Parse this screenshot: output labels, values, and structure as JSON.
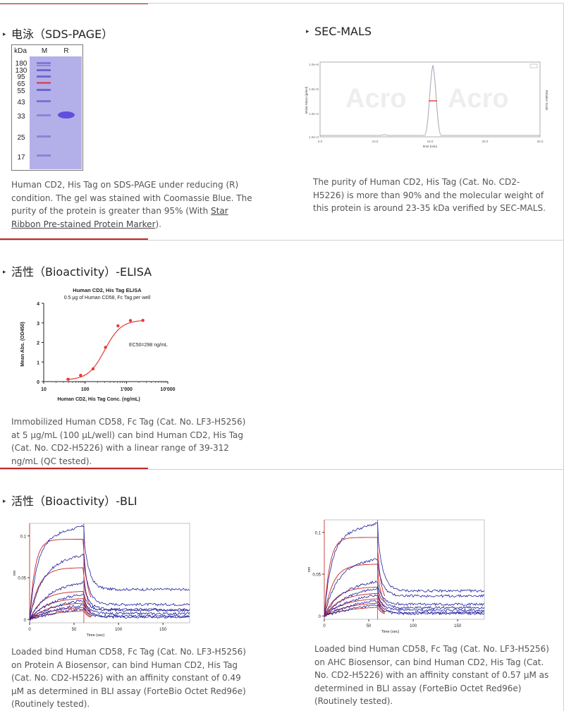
{
  "sds": {
    "title": "电泳（SDS-PAGE）",
    "gel": {
      "header_kda": "kDa",
      "header_m": "M",
      "header_r": "R",
      "ladder": [
        "180",
        "130",
        "95",
        "65",
        "55",
        "43",
        "33",
        "25",
        "17"
      ]
    },
    "desc_text": "Human CD2, His Tag on SDS-PAGE under reducing (R) condition. The gel was stained with Coomassie Blue. The purity of the protein is greater than 95% (With ",
    "desc_link": "Star Ribbon Pre-stained Protein Marker",
    "desc_end": ")."
  },
  "secmals": {
    "title": "SEC-MALS",
    "y_ticks": [
      "1.0e+6",
      "1.0e+5",
      "1.0e+4",
      "1.0e+3"
    ],
    "x_ticks": [
      "5.0",
      "10.0",
      "15.0",
      "20.0",
      "25.0"
    ],
    "y_label": "Molar Mass (g/mol)",
    "y2_label": "Relative Scale",
    "x_label": "time (min)",
    "watermark": "Acro",
    "desc": "The purity of Human CD2, His Tag (Cat. No. CD2-H5226) is more than 90% and the molecular weight of this protein is around 23-35 kDa verified by SEC-MALS."
  },
  "elisa": {
    "title": "活性（Bioactivity）-ELISA",
    "desc": "Immobilized Human CD58, Fc Tag (Cat. No. LF3-H5256) at 5 μg/mL (100 μL/well) can bind Human CD2, His Tag (Cat. No. CD2-H5226) with a linear range of 39-312 ng/mL (QC tested)."
  },
  "bli": {
    "title": "活性（Bioactivity）-BLI",
    "left_desc": "Loaded bind Human CD58, Fc Tag (Cat. No. LF3-H5256) on Protein A Biosensor, can bind Human CD2, His Tag (Cat. No. CD2-H5226) with an affinity constant of 0.49 μM as determined in BLI assay (ForteBio Octet Red96e) (Routinely tested).",
    "right_desc": "Loaded bind Human CD58, Fc Tag (Cat. No. LF3-H5256) on AHC Biosensor, can bind Human CD2, His Tag (Cat. No. CD2-H5226) with an affinity constant of 0.57 μM as determined in BLI assay (ForteBio Octet Red96e) (Routinely tested)."
  },
  "chart_data": [
    {
      "type": "scatter",
      "title": "Human CD2, His Tag ELISA",
      "subtitle": "0.5 μg of Human CD58, Fc Tag per well",
      "xlabel": "Human CD2, His Tag Conc. (ng/mL)",
      "ylabel": "Mean Abs. (OD450)",
      "x_scale": "log",
      "x_ticks": [
        "10",
        "100",
        "1'000",
        "10'000"
      ],
      "y_ticks": [
        "0",
        "1",
        "2",
        "3",
        "4"
      ],
      "xlim": [
        10,
        10000
      ],
      "ylim": [
        0,
        4
      ],
      "annotation": "EC50=298  ng/mL",
      "series": [
        {
          "x": [
            39,
            78,
            156,
            312,
            625,
            1250,
            2500
          ],
          "y": [
            0.12,
            0.32,
            0.65,
            1.75,
            2.85,
            3.12,
            3.13
          ]
        }
      ],
      "fit": {
        "bottom": 0.08,
        "top": 3.14,
        "ec50": 298,
        "hill": 2.2
      },
      "color": "#e53935"
    },
    {
      "type": "line",
      "title": "",
      "xlabel": "Time (sec)",
      "ylabel": "nm",
      "x_ticks": [
        "0",
        "50",
        "100",
        "150"
      ],
      "y_ticks": [
        "0",
        "0.05",
        "0.1"
      ],
      "xlim": [
        0,
        180
      ],
      "ylim": [
        -0.004,
        0.115
      ],
      "switch_time": 61,
      "series_plateau": [
        0.112,
        0.078,
        0.046,
        0.033,
        0.026,
        0.021,
        0.016
      ],
      "fit_plateau": [
        0.096,
        0.062,
        0.034,
        0.026,
        0.021,
        0.016,
        0.012
      ],
      "dissociation_end": [
        0.036,
        0.018,
        0.012,
        0.011,
        0.007,
        0.004,
        0.003
      ],
      "data_color": "#1f1f9e",
      "fit_color": "#c62828"
    },
    {
      "type": "line",
      "title": "",
      "xlabel": "Time (sec)",
      "ylabel": "nm",
      "x_ticks": [
        "0",
        "50",
        "100",
        "150"
      ],
      "y_ticks": [
        "0",
        "0.05",
        "0.1"
      ],
      "xlim": [
        0,
        180
      ],
      "ylim": [
        -0.004,
        0.115
      ],
      "switch_time": 60,
      "series_plateau": [
        0.111,
        0.069,
        0.043,
        0.036,
        0.029,
        0.022,
        0.016
      ],
      "fit_plateau": [
        0.094,
        0.062,
        0.035,
        0.028,
        0.022,
        0.017,
        0.012
      ],
      "dissociation_end": [
        0.03,
        0.024,
        0.014,
        0.01,
        0.007,
        0.004,
        0.003
      ],
      "data_color": "#1f1f9e",
      "fit_color": "#c62828"
    }
  ]
}
